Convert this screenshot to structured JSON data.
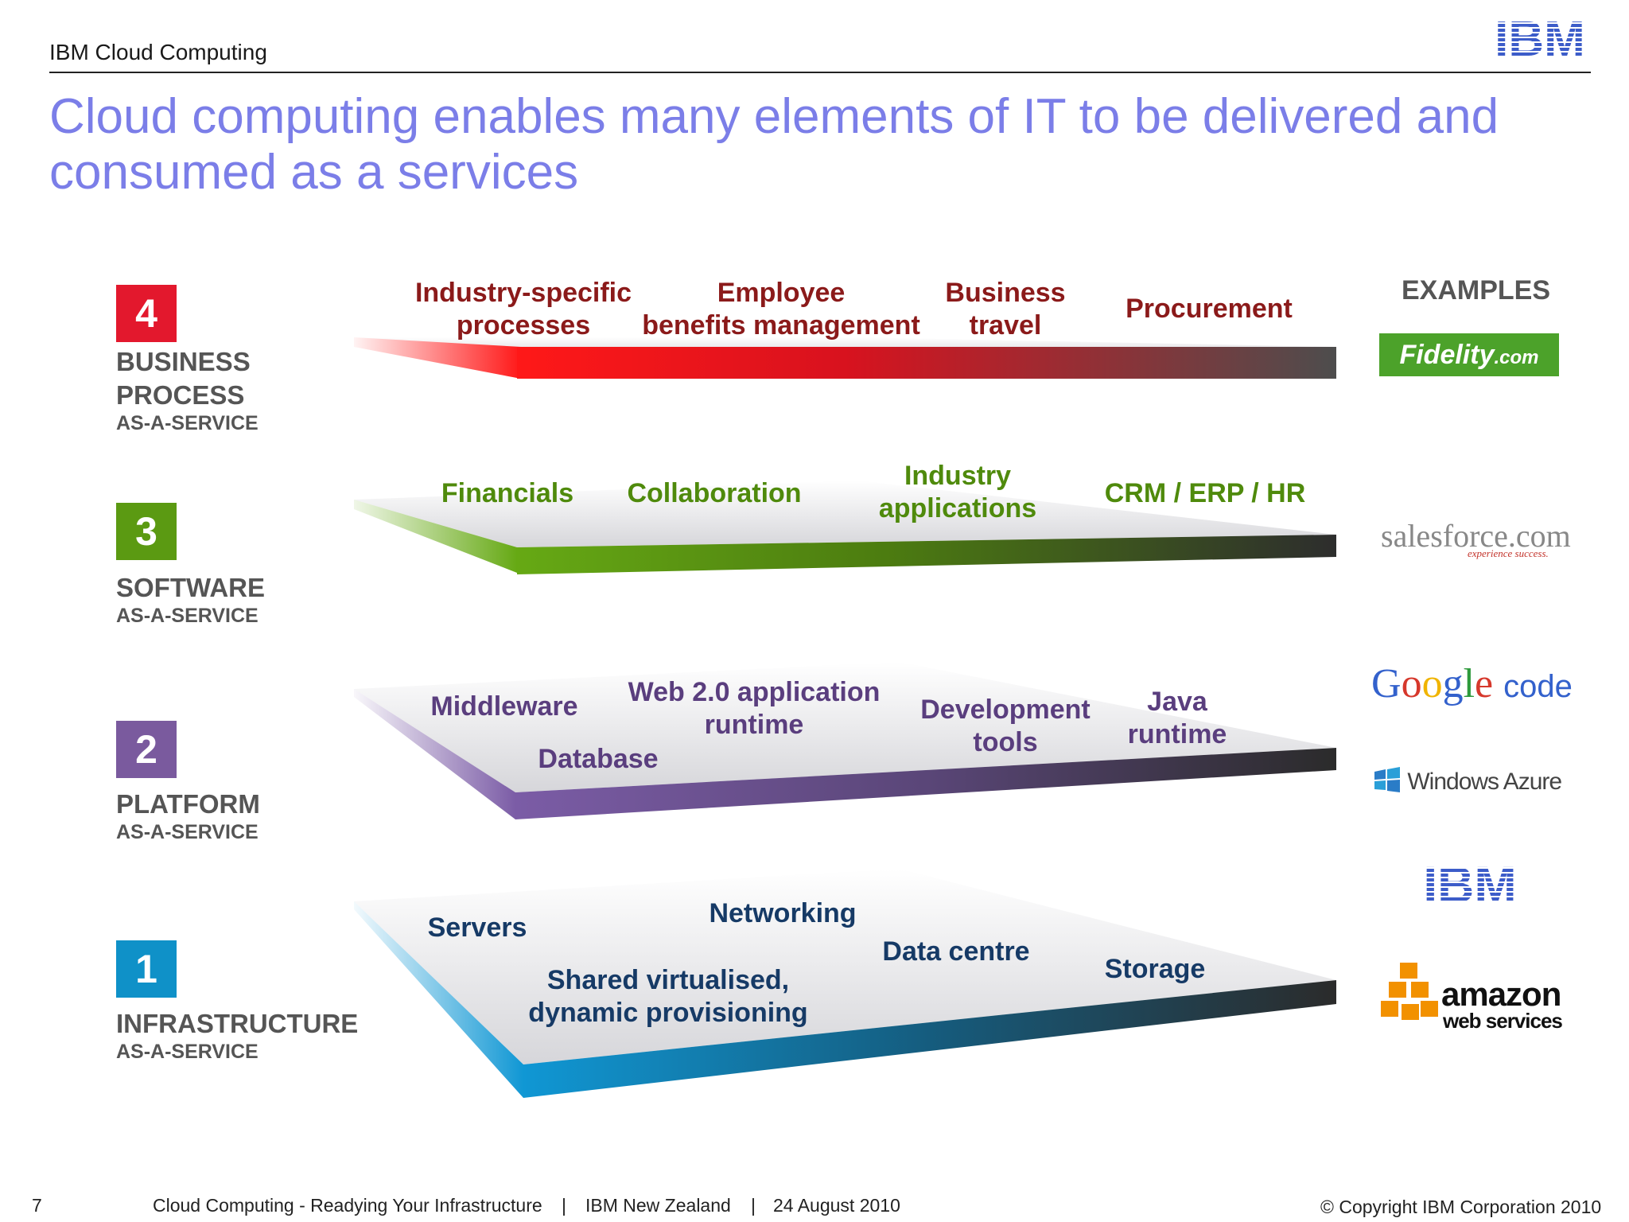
{
  "header": {
    "title": "IBM Cloud Computing",
    "logo_text": "IBM"
  },
  "slide": {
    "title_line1": "Cloud computing enables many elements of IT to be delivered and",
    "title_line2": "consumed as a services"
  },
  "layers": {
    "business": {
      "number": "4",
      "name1": "BUSINESS",
      "name2": "PROCESS",
      "sub": "AS-A-SERVICE",
      "color": "#e3182d",
      "labels": [
        "Industry-specific\nprocesses",
        "Employee\nbenefits management",
        "Business\ntravel",
        "Procurement"
      ]
    },
    "software": {
      "number": "3",
      "name1": "SOFTWARE",
      "sub": "AS-A-SERVICE",
      "color": "#5b9a12",
      "labels": [
        "Financials",
        "Collaboration",
        "Industry\napplications",
        "CRM / ERP / HR"
      ]
    },
    "platform": {
      "number": "2",
      "name1": "PLATFORM",
      "sub": "AS-A-SERVICE",
      "color": "#7a5a9e",
      "labels": [
        "Middleware",
        "Web 2.0 application\nruntime",
        "Database",
        "Development\ntools",
        "Java\nruntime"
      ]
    },
    "infrastructure": {
      "number": "1",
      "name1": "INFRASTRUCTURE",
      "sub": "AS-A-SERVICE",
      "color": "#0f91c8",
      "labels": [
        "Servers",
        "Networking",
        "Shared virtualised,\ndynamic provisioning",
        "Data centre",
        "Storage"
      ]
    }
  },
  "examples": {
    "header": "EXAMPLES",
    "fidelity": "Fidelity",
    "fidelity_suffix": ".com",
    "salesforce": "salesforce.com",
    "salesforce_tagline": "experience success.",
    "google_letters": [
      "G",
      "o",
      "o",
      "g",
      "l",
      "e"
    ],
    "google_suffix": "code",
    "azure": "Windows Azure",
    "ibm": "IBM",
    "amazon": "amazon",
    "amazon_sub": "web services"
  },
  "footer": {
    "page": "7",
    "presentation": "Cloud Computing - Readying Your Infrastructure",
    "separator": "|",
    "org": "IBM New Zealand",
    "date": "24 August 2010",
    "copyright": "© Copyright IBM Corporation 2010"
  },
  "colors": {
    "title": "#7b7ee8",
    "business_label": "#8b1a1a",
    "software_label": "#4f8a0c",
    "platform_label": "#5a3e7e",
    "infrastructure_label": "#163a66",
    "ibm_blue": "#3c5cc9"
  }
}
